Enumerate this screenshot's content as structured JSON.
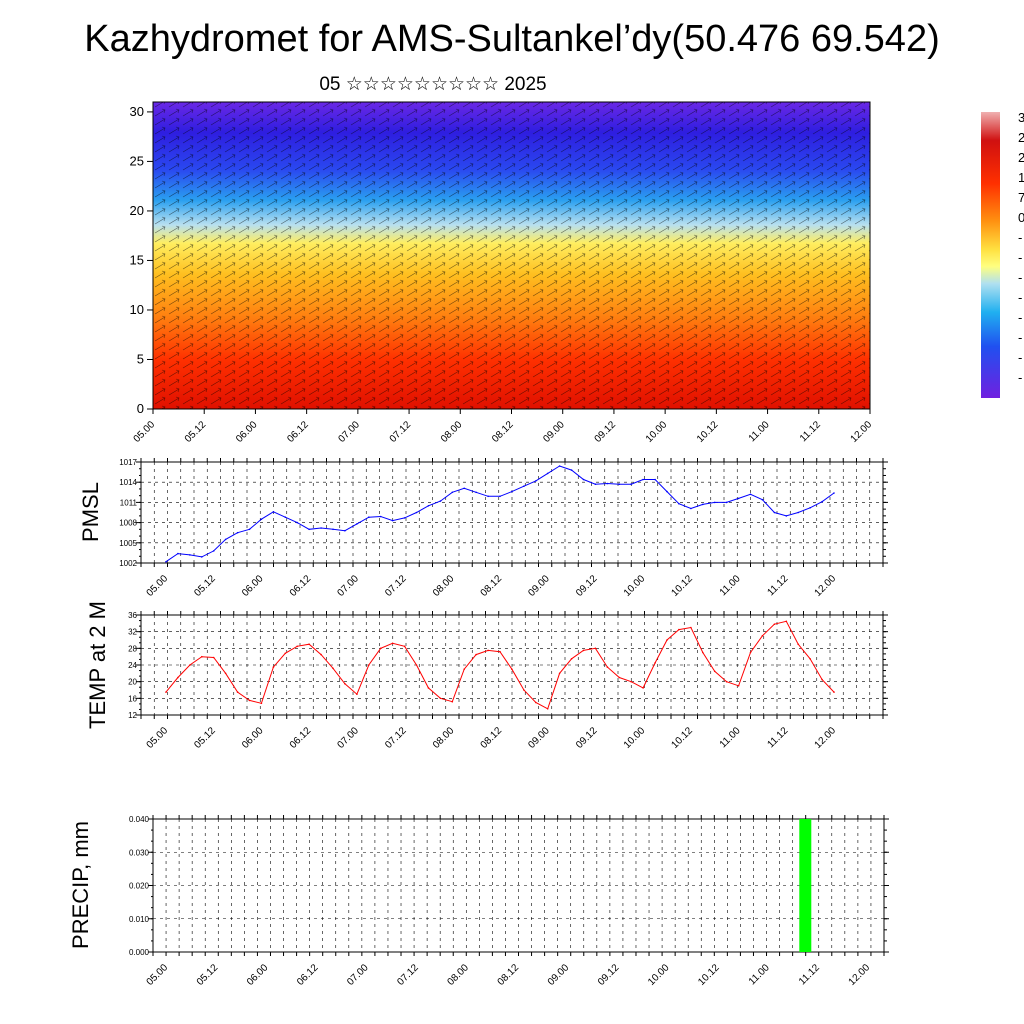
{
  "title": "Kazhydromet for AMS-Sultankel’dy(50.476 69.542)",
  "subtitle": "05 ☆☆☆☆☆☆☆☆☆ 2025",
  "colors": {
    "pmsl_line": "#0000ff",
    "temp_line": "#ff0000",
    "precip_bar": "#00ff00",
    "grid": "#000000"
  },
  "chart_data": [
    {
      "type": "heatmap",
      "name": "vertical cross-section",
      "x_tick_labels": [
        "05.00",
        "05.12",
        "06.00",
        "06.12",
        "07.00",
        "07.12",
        "08.00",
        "08.12",
        "09.00",
        "09.12",
        "10.00",
        "10.12",
        "11.00",
        "11.12",
        "12.00"
      ],
      "y_tick_labels": [
        "0",
        "5",
        "10",
        "15",
        "20",
        "25",
        "30"
      ],
      "ylim": [
        0,
        31
      ],
      "colorbar_labels": [
        "3",
        "2",
        "2",
        "1",
        "7",
        "0",
        "-",
        "-",
        "-",
        "-",
        "-",
        "-",
        "-",
        "-"
      ]
    },
    {
      "type": "line",
      "ylabel": "PMSL",
      "ylim": [
        1002,
        1017
      ],
      "y_tick_labels": [
        "1017",
        "1014",
        "1011",
        "1008",
        "1005",
        "1002"
      ],
      "x_tick_labels": [
        "05.00",
        "05.12",
        "06.00",
        "06.12",
        "07.00",
        "07.12",
        "08.00",
        "08.12",
        "09.00",
        "09.12",
        "10.00",
        "10.12",
        "11.00",
        "11.12",
        "12.00"
      ],
      "x_step_hours": 3,
      "values": [
        1002.2,
        1003.4,
        1003.2,
        1002.9,
        1003.8,
        1005.5,
        1006.5,
        1007.0,
        1008.5,
        1009.6,
        1008.8,
        1008.0,
        1007.0,
        1007.2,
        1007.0,
        1006.8,
        1007.8,
        1008.8,
        1008.9,
        1008.3,
        1008.7,
        1009.5,
        1010.5,
        1011.2,
        1012.5,
        1013.1,
        1012.5,
        1011.9,
        1011.9,
        1012.6,
        1013.4,
        1014.2,
        1015.3,
        1016.4,
        1015.8,
        1014.4,
        1013.7,
        1013.8,
        1013.7,
        1013.7,
        1014.4,
        1014.4,
        1012.6,
        1010.8,
        1010.1,
        1010.7,
        1011.0,
        1011.0,
        1011.6,
        1012.2,
        1011.4,
        1009.5,
        1009.0,
        1009.5,
        1010.2,
        1011.1,
        1012.4
      ]
    },
    {
      "type": "line",
      "ylabel": "TEMP at 2 M",
      "ylim": [
        12,
        36
      ],
      "y_tick_labels": [
        "36",
        "32",
        "28",
        "24",
        "20",
        "16",
        "12"
      ],
      "x_tick_labels": [
        "05.00",
        "05.12",
        "06.00",
        "06.12",
        "07.00",
        "07.12",
        "08.00",
        "08.12",
        "09.00",
        "09.12",
        "10.00",
        "10.12",
        "11.00",
        "11.12",
        "12.00"
      ],
      "x_step_hours": 3,
      "values": [
        17.5,
        21.0,
        24.0,
        26.0,
        25.8,
        22.0,
        17.5,
        15.5,
        14.8,
        23.5,
        26.8,
        28.5,
        29.0,
        26.5,
        23.2,
        19.5,
        17.0,
        24.0,
        28.0,
        29.2,
        28.5,
        24.0,
        18.5,
        16.0,
        15.2,
        23.0,
        26.5,
        27.5,
        27.2,
        23.0,
        18.0,
        15.0,
        13.5,
        22.0,
        25.5,
        27.5,
        28.0,
        23.5,
        21.0,
        20.0,
        18.5,
        24.5,
        30.0,
        32.5,
        33.0,
        27.0,
        22.5,
        20.0,
        19.0,
        27.0,
        31.0,
        33.8,
        34.5,
        29.0,
        25.5,
        20.5,
        17.5
      ]
    },
    {
      "type": "bar",
      "ylabel": "PRECIP, mm",
      "ylim": [
        0,
        0.04
      ],
      "y_tick_labels": [
        "0.040",
        "0.030",
        "0.020",
        "0.010",
        "0.000"
      ],
      "x_tick_labels": [
        "05.00",
        "05.12",
        "06.00",
        "06.12",
        "07.00",
        "07.12",
        "08.00",
        "08.12",
        "09.00",
        "09.12",
        "10.00",
        "10.12",
        "11.00",
        "11.12",
        "12.00"
      ],
      "bars": [
        {
          "x": "11.09",
          "value": 0.04
        }
      ]
    }
  ]
}
